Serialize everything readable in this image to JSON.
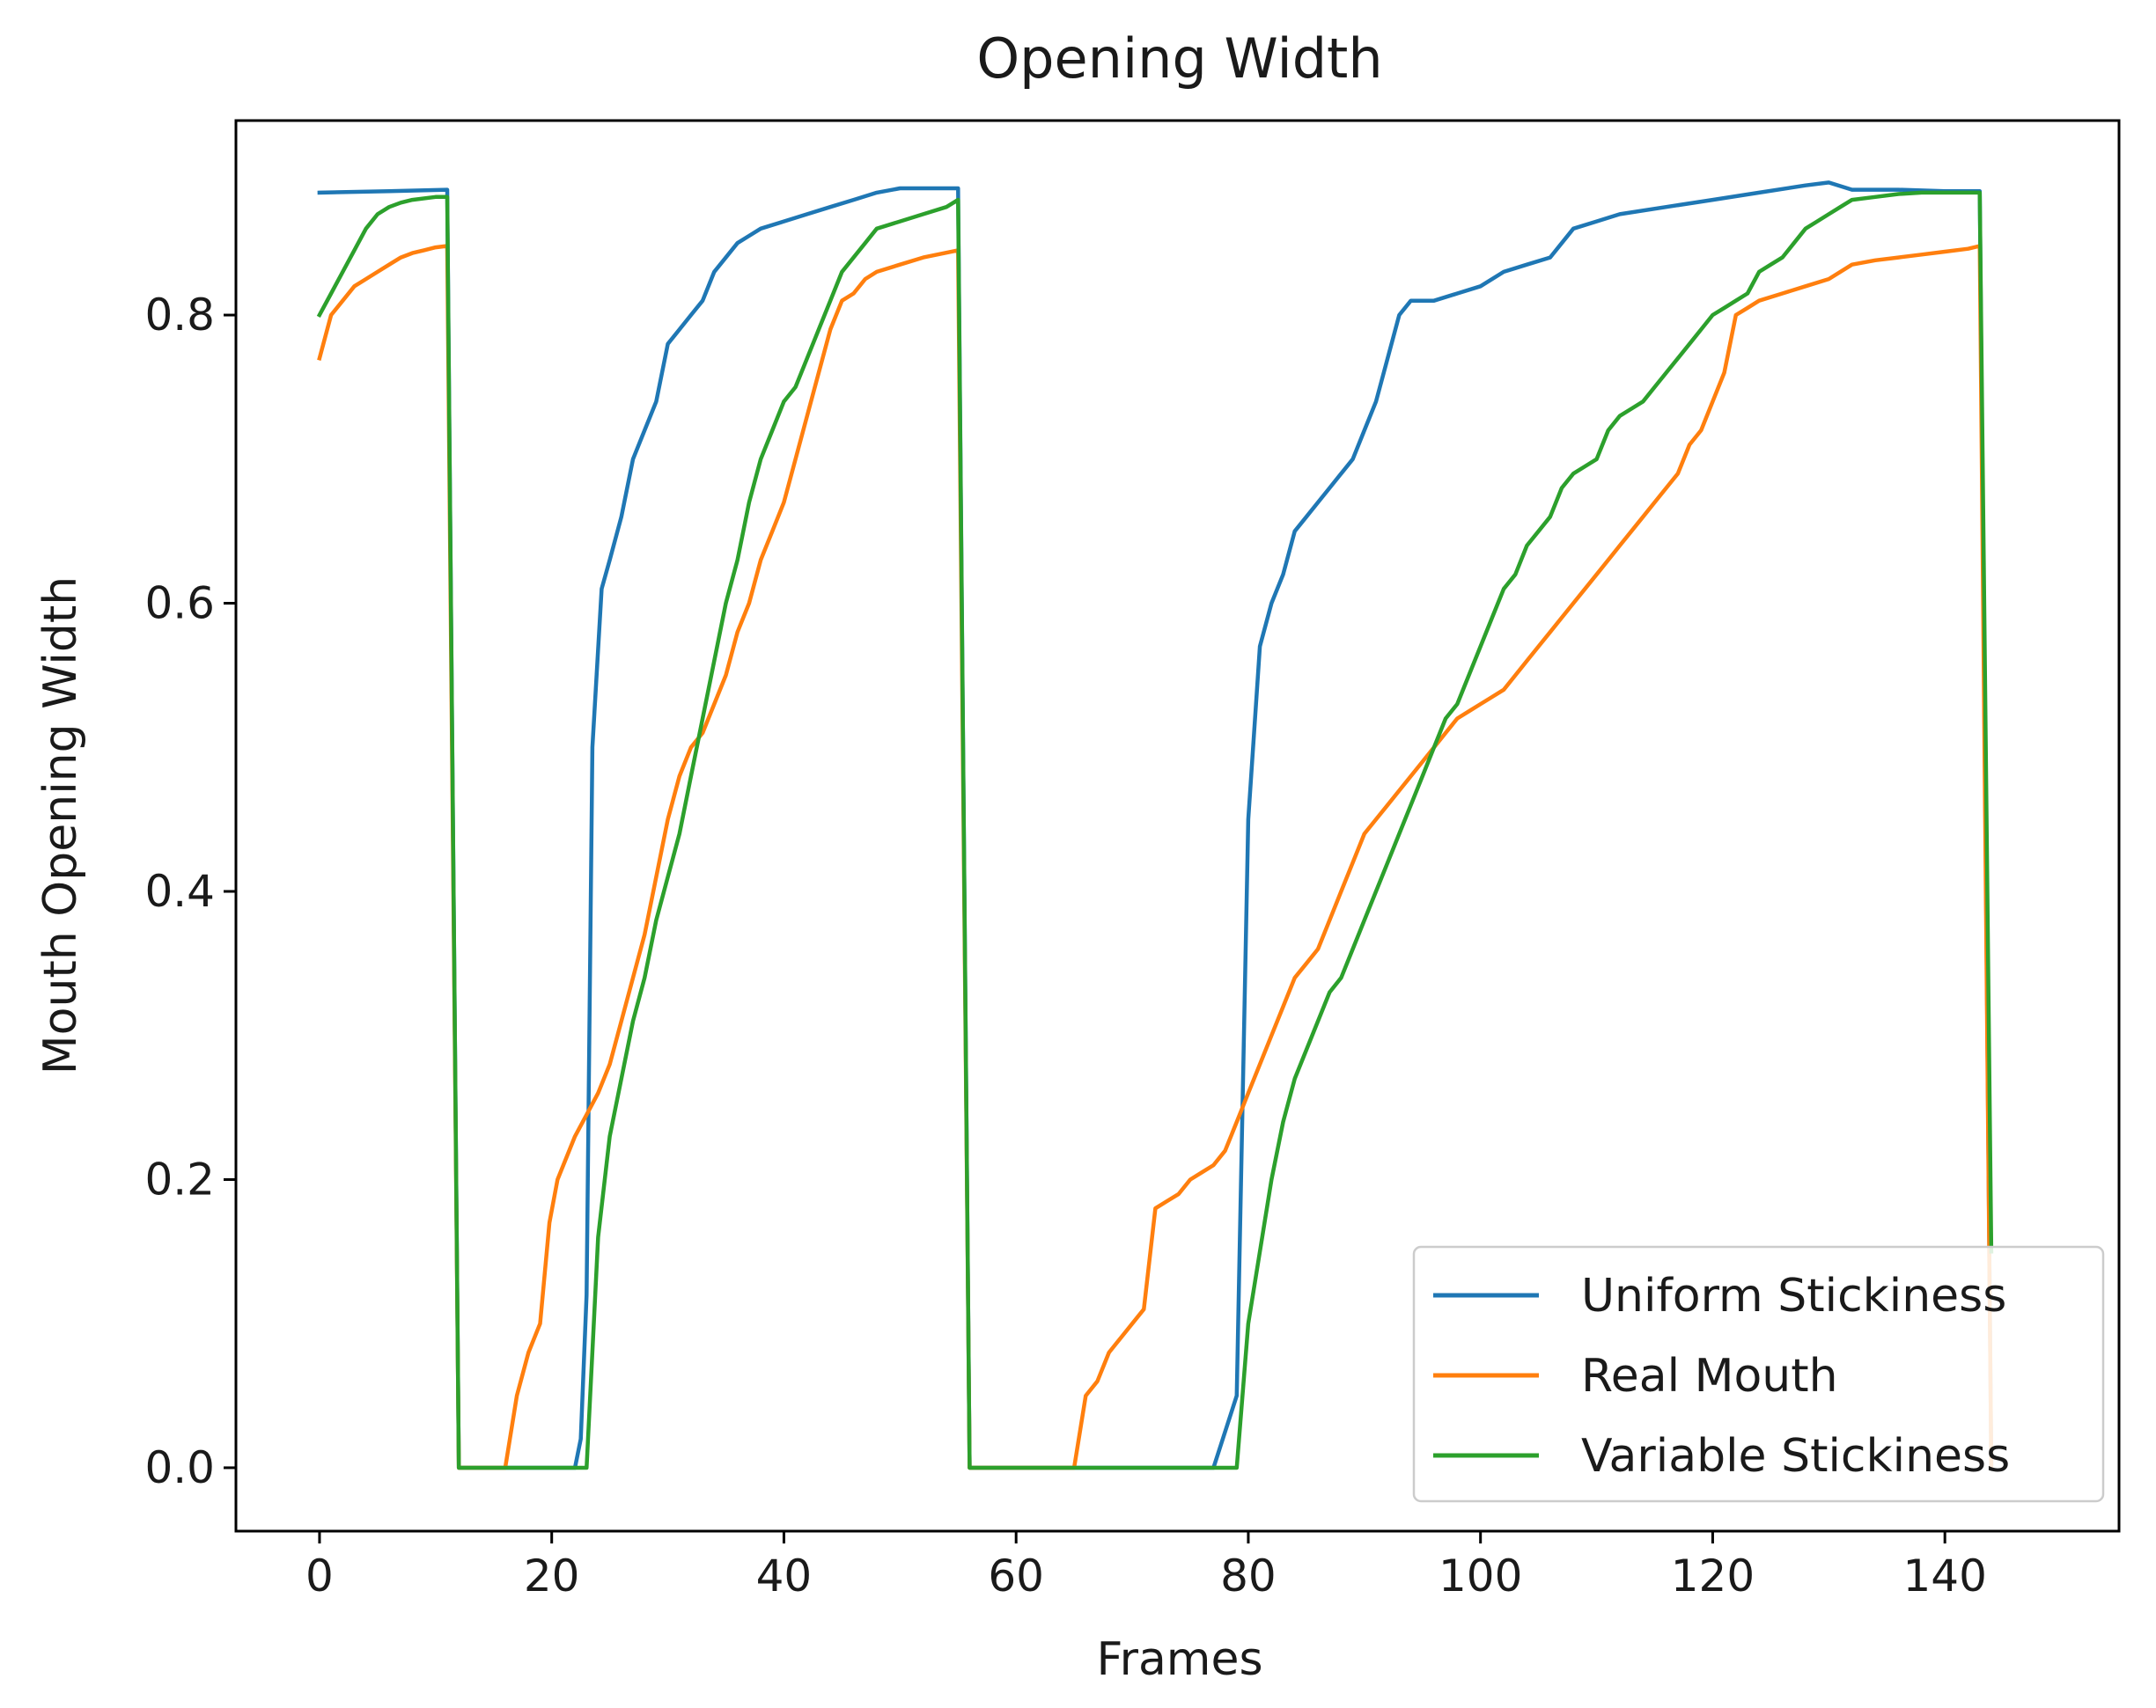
{
  "chart_data": {
    "type": "line",
    "title": "Opening Width",
    "xlabel": "Frames",
    "ylabel": "Mouth Opening Width",
    "xlim": [
      -7.2,
      155
    ],
    "ylim": [
      -0.044,
      0.935
    ],
    "xticks": [
      0,
      20,
      40,
      60,
      80,
      100,
      120,
      140
    ],
    "yticks": [
      0.0,
      0.2,
      0.4,
      0.6,
      0.8
    ],
    "xtick_labels": [
      "0",
      "20",
      "40",
      "60",
      "80",
      "100",
      "120",
      "140"
    ],
    "ytick_labels": [
      "0.0",
      "0.2",
      "0.4",
      "0.6",
      "0.8"
    ],
    "grid": false,
    "legend": {
      "position": "bottom-right"
    },
    "series": [
      {
        "name": "Uniform Stickiness",
        "color": "#1f77b4",
        "points": [
          [
            0,
            0.885
          ],
          [
            6,
            0.886
          ],
          [
            11,
            0.887
          ],
          [
            12,
            0
          ],
          [
            22,
            0
          ],
          [
            22.5,
            0.02
          ],
          [
            23,
            0.12
          ],
          [
            23.5,
            0.5
          ],
          [
            24.3,
            0.61
          ],
          [
            25,
            0.63
          ],
          [
            26,
            0.66
          ],
          [
            27,
            0.7
          ],
          [
            28,
            0.72
          ],
          [
            29,
            0.74
          ],
          [
            30,
            0.78
          ],
          [
            31,
            0.79
          ],
          [
            32,
            0.8
          ],
          [
            33,
            0.81
          ],
          [
            34,
            0.83
          ],
          [
            35,
            0.84
          ],
          [
            36,
            0.85
          ],
          [
            37,
            0.855
          ],
          [
            38,
            0.86
          ],
          [
            40,
            0.865
          ],
          [
            42,
            0.87
          ],
          [
            44,
            0.875
          ],
          [
            46,
            0.88
          ],
          [
            48,
            0.885
          ],
          [
            50,
            0.888
          ],
          [
            52,
            0.888
          ],
          [
            55,
            0.888
          ],
          [
            56,
            0
          ],
          [
            77,
            0
          ],
          [
            79,
            0.05
          ],
          [
            80,
            0.45
          ],
          [
            81,
            0.57
          ],
          [
            82,
            0.6
          ],
          [
            83,
            0.62
          ],
          [
            84,
            0.65
          ],
          [
            85,
            0.66
          ],
          [
            86,
            0.67
          ],
          [
            87,
            0.68
          ],
          [
            88,
            0.69
          ],
          [
            89,
            0.7
          ],
          [
            90,
            0.72
          ],
          [
            91,
            0.74
          ],
          [
            92,
            0.77
          ],
          [
            93,
            0.8
          ],
          [
            94,
            0.81
          ],
          [
            96,
            0.81
          ],
          [
            98,
            0.815
          ],
          [
            100,
            0.82
          ],
          [
            102,
            0.83
          ],
          [
            104,
            0.835
          ],
          [
            106,
            0.84
          ],
          [
            108,
            0.86
          ],
          [
            110,
            0.865
          ],
          [
            112,
            0.87
          ],
          [
            116,
            0.875
          ],
          [
            120,
            0.88
          ],
          [
            124,
            0.885
          ],
          [
            128,
            0.89
          ],
          [
            130,
            0.892
          ],
          [
            132,
            0.887
          ],
          [
            136,
            0.887
          ],
          [
            140,
            0.886
          ],
          [
            143,
            0.886
          ],
          [
            144,
            0
          ]
        ]
      },
      {
        "name": "Real Mouth",
        "color": "#ff7f0e",
        "points": [
          [
            0,
            0.77
          ],
          [
            1,
            0.8
          ],
          [
            2,
            0.81
          ],
          [
            3,
            0.82
          ],
          [
            4,
            0.825
          ],
          [
            5,
            0.83
          ],
          [
            6,
            0.835
          ],
          [
            7,
            0.84
          ],
          [
            8,
            0.843
          ],
          [
            9,
            0.845
          ],
          [
            10,
            0.847
          ],
          [
            11,
            0.848
          ],
          [
            12,
            0
          ],
          [
            16,
            0
          ],
          [
            17,
            0.05
          ],
          [
            18,
            0.08
          ],
          [
            19,
            0.1
          ],
          [
            19.8,
            0.17
          ],
          [
            20.5,
            0.2
          ],
          [
            22,
            0.23
          ],
          [
            23,
            0.245
          ],
          [
            24,
            0.26
          ],
          [
            25,
            0.28
          ],
          [
            26,
            0.31
          ],
          [
            27,
            0.34
          ],
          [
            28,
            0.37
          ],
          [
            29,
            0.41
          ],
          [
            30,
            0.45
          ],
          [
            31,
            0.48
          ],
          [
            32,
            0.5
          ],
          [
            33,
            0.51
          ],
          [
            34,
            0.53
          ],
          [
            35,
            0.55
          ],
          [
            36,
            0.58
          ],
          [
            37,
            0.6
          ],
          [
            38,
            0.63
          ],
          [
            39,
            0.65
          ],
          [
            40,
            0.67
          ],
          [
            41,
            0.7
          ],
          [
            42,
            0.73
          ],
          [
            43,
            0.76
          ],
          [
            44,
            0.79
          ],
          [
            45,
            0.81
          ],
          [
            46,
            0.815
          ],
          [
            47,
            0.825
          ],
          [
            48,
            0.83
          ],
          [
            50,
            0.835
          ],
          [
            52,
            0.84
          ],
          [
            55,
            0.845
          ],
          [
            56,
            0
          ],
          [
            65,
            0
          ],
          [
            66,
            0.05
          ],
          [
            67,
            0.06
          ],
          [
            68,
            0.08
          ],
          [
            69,
            0.09
          ],
          [
            70,
            0.1
          ],
          [
            71,
            0.11
          ],
          [
            72,
            0.18
          ],
          [
            73,
            0.185
          ],
          [
            74,
            0.19
          ],
          [
            75,
            0.2
          ],
          [
            76,
            0.205
          ],
          [
            77,
            0.21
          ],
          [
            78,
            0.22
          ],
          [
            79,
            0.24
          ],
          [
            80,
            0.26
          ],
          [
            81,
            0.28
          ],
          [
            82,
            0.3
          ],
          [
            83,
            0.32
          ],
          [
            84,
            0.34
          ],
          [
            85,
            0.35
          ],
          [
            86,
            0.36
          ],
          [
            87,
            0.38
          ],
          [
            88,
            0.4
          ],
          [
            89,
            0.42
          ],
          [
            90,
            0.44
          ],
          [
            91,
            0.45
          ],
          [
            92,
            0.46
          ],
          [
            93,
            0.47
          ],
          [
            94,
            0.48
          ],
          [
            95,
            0.49
          ],
          [
            96,
            0.5
          ],
          [
            97,
            0.51
          ],
          [
            98,
            0.52
          ],
          [
            99,
            0.525
          ],
          [
            100,
            0.53
          ],
          [
            101,
            0.535
          ],
          [
            102,
            0.54
          ],
          [
            103,
            0.55
          ],
          [
            104,
            0.56
          ],
          [
            105,
            0.57
          ],
          [
            106,
            0.58
          ],
          [
            107,
            0.59
          ],
          [
            108,
            0.6
          ],
          [
            109,
            0.61
          ],
          [
            110,
            0.62
          ],
          [
            111,
            0.63
          ],
          [
            112,
            0.64
          ],
          [
            113,
            0.65
          ],
          [
            114,
            0.66
          ],
          [
            115,
            0.67
          ],
          [
            116,
            0.68
          ],
          [
            117,
            0.69
          ],
          [
            118,
            0.71
          ],
          [
            119,
            0.72
          ],
          [
            120,
            0.74
          ],
          [
            121,
            0.76
          ],
          [
            122,
            0.8
          ],
          [
            123,
            0.805
          ],
          [
            124,
            0.81
          ],
          [
            126,
            0.815
          ],
          [
            128,
            0.82
          ],
          [
            130,
            0.825
          ],
          [
            132,
            0.835
          ],
          [
            134,
            0.838
          ],
          [
            136,
            0.84
          ],
          [
            138,
            0.842
          ],
          [
            140,
            0.844
          ],
          [
            142,
            0.846
          ],
          [
            143,
            0.848
          ],
          [
            144,
            0
          ]
        ]
      },
      {
        "name": "Variable Stickiness",
        "color": "#2ca02c",
        "points": [
          [
            0,
            0.8
          ],
          [
            1,
            0.815
          ],
          [
            2,
            0.83
          ],
          [
            3,
            0.845
          ],
          [
            4,
            0.86
          ],
          [
            5,
            0.87
          ],
          [
            6,
            0.875
          ],
          [
            7,
            0.878
          ],
          [
            8,
            0.88
          ],
          [
            10,
            0.882
          ],
          [
            11,
            0.882
          ],
          [
            12,
            0
          ],
          [
            23,
            0
          ],
          [
            24,
            0.16
          ],
          [
            25,
            0.23
          ],
          [
            26,
            0.27
          ],
          [
            27,
            0.31
          ],
          [
            28,
            0.34
          ],
          [
            29,
            0.38
          ],
          [
            30,
            0.41
          ],
          [
            31,
            0.44
          ],
          [
            32,
            0.48
          ],
          [
            33,
            0.52
          ],
          [
            34,
            0.56
          ],
          [
            35,
            0.6
          ],
          [
            36,
            0.63
          ],
          [
            37,
            0.67
          ],
          [
            38,
            0.7
          ],
          [
            39,
            0.72
          ],
          [
            40,
            0.74
          ],
          [
            41,
            0.75
          ],
          [
            42,
            0.77
          ],
          [
            43,
            0.79
          ],
          [
            44,
            0.81
          ],
          [
            45,
            0.83
          ],
          [
            46,
            0.84
          ],
          [
            47,
            0.85
          ],
          [
            48,
            0.86
          ],
          [
            50,
            0.865
          ],
          [
            52,
            0.87
          ],
          [
            54,
            0.875
          ],
          [
            55,
            0.88
          ],
          [
            56,
            0
          ],
          [
            79,
            0
          ],
          [
            80,
            0.1
          ],
          [
            81,
            0.15
          ],
          [
            82,
            0.2
          ],
          [
            83,
            0.24
          ],
          [
            84,
            0.27
          ],
          [
            85,
            0.29
          ],
          [
            86,
            0.31
          ],
          [
            87,
            0.33
          ],
          [
            88,
            0.34
          ],
          [
            89,
            0.36
          ],
          [
            90,
            0.38
          ],
          [
            91,
            0.4
          ],
          [
            92,
            0.42
          ],
          [
            93,
            0.44
          ],
          [
            94,
            0.46
          ],
          [
            95,
            0.48
          ],
          [
            96,
            0.5
          ],
          [
            97,
            0.52
          ],
          [
            98,
            0.53
          ],
          [
            99,
            0.55
          ],
          [
            100,
            0.57
          ],
          [
            101,
            0.59
          ],
          [
            102,
            0.61
          ],
          [
            103,
            0.62
          ],
          [
            104,
            0.64
          ],
          [
            105,
            0.65
          ],
          [
            106,
            0.66
          ],
          [
            107,
            0.68
          ],
          [
            108,
            0.69
          ],
          [
            109,
            0.695
          ],
          [
            110,
            0.7
          ],
          [
            111,
            0.72
          ],
          [
            112,
            0.73
          ],
          [
            113,
            0.735
          ],
          [
            114,
            0.74
          ],
          [
            115,
            0.75
          ],
          [
            116,
            0.76
          ],
          [
            117,
            0.77
          ],
          [
            118,
            0.78
          ],
          [
            119,
            0.79
          ],
          [
            120,
            0.8
          ],
          [
            121,
            0.805
          ],
          [
            122,
            0.81
          ],
          [
            123,
            0.815
          ],
          [
            124,
            0.83
          ],
          [
            125,
            0.835
          ],
          [
            126,
            0.84
          ],
          [
            127,
            0.85
          ],
          [
            128,
            0.86
          ],
          [
            129,
            0.865
          ],
          [
            130,
            0.87
          ],
          [
            131,
            0.875
          ],
          [
            132,
            0.88
          ],
          [
            134,
            0.882
          ],
          [
            136,
            0.884
          ],
          [
            138,
            0.885
          ],
          [
            140,
            0.885
          ],
          [
            142,
            0.885
          ],
          [
            143,
            0.885
          ],
          [
            144,
            0.15
          ]
        ]
      }
    ]
  }
}
